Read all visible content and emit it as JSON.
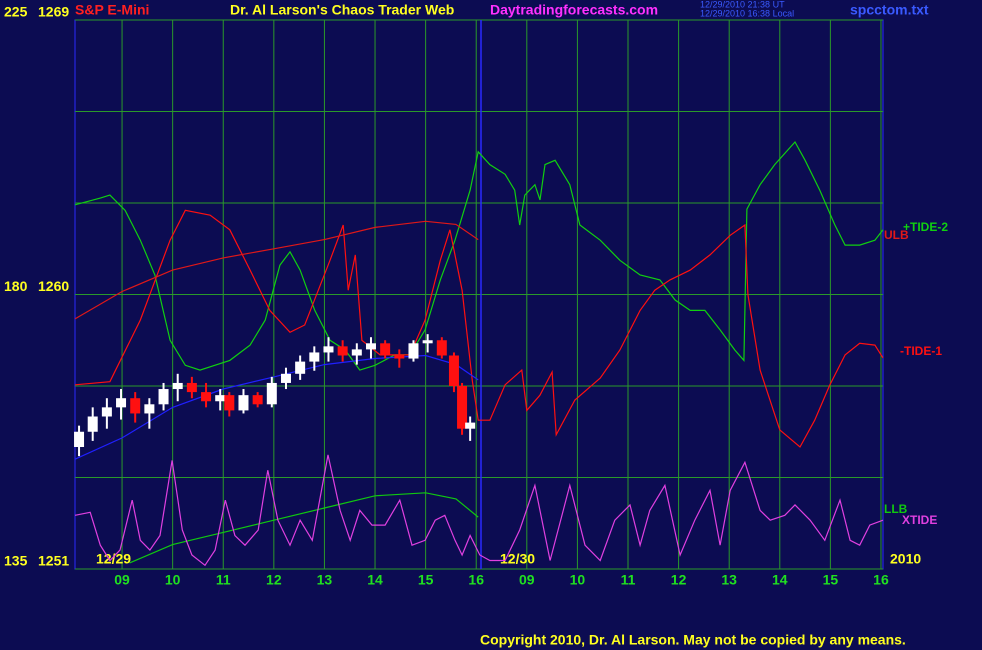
{
  "chart_data": {
    "type": "line",
    "title": "Dr. Al Larson's Chaos Trader Web",
    "instrument": "S&P E-Mini",
    "site": "Daytradingforecasts.com",
    "timestamps": [
      "12/29/2010 21:38 UT",
      "12/29/2010 16:38 Local"
    ],
    "file": "spcctom.txt",
    "copyright": "Copyright 2010, Dr. Al Larson. May not be copied by any means.",
    "date_labels": [
      "12/29",
      "12/30",
      "2010"
    ],
    "xlim": [
      0.07,
      16.04
    ],
    "xticks": [
      {
        "value": 1,
        "label": "09"
      },
      {
        "value": 2,
        "label": "10"
      },
      {
        "value": 3,
        "label": "11"
      },
      {
        "value": 4,
        "label": "12"
      },
      {
        "value": 5,
        "label": "13"
      },
      {
        "value": 6,
        "label": "14"
      },
      {
        "value": 7,
        "label": "15"
      },
      {
        "value": 8,
        "label": "16"
      },
      {
        "value": 9,
        "label": "09"
      },
      {
        "value": 10,
        "label": "10"
      },
      {
        "value": 11,
        "label": "11"
      },
      {
        "value": 12,
        "label": "12"
      },
      {
        "value": 13,
        "label": "13"
      },
      {
        "value": 14,
        "label": "14"
      },
      {
        "value": 15,
        "label": "15"
      },
      {
        "value": 16,
        "label": "16"
      }
    ],
    "ylim": [
      1251,
      1269
    ],
    "yticks": [
      1251,
      1260,
      1269
    ],
    "ygrid": [
      1254,
      1257,
      1263,
      1266
    ],
    "y2lim": [
      135,
      225
    ],
    "y2ticks": [
      135,
      180,
      225
    ],
    "grid": true,
    "series": [
      {
        "name": "+TIDE-2",
        "color": "#10d010",
        "axis": "y2",
        "x": [
          0.07,
          0.57,
          0.76,
          1.06,
          1.36,
          1.65,
          1.95,
          2.25,
          2.54,
          3.13,
          3.53,
          3.83,
          4.12,
          4.32,
          4.52,
          4.81,
          5.11,
          5.41,
          5.7,
          6.0,
          6.39,
          6.69,
          6.99,
          7.29,
          7.58,
          7.88,
          8.04,
          8.27,
          8.57,
          8.76,
          8.86,
          8.96,
          9.16,
          9.26,
          9.36,
          9.56,
          9.85,
          10.05,
          10.45,
          10.84,
          11.24,
          11.63,
          11.93,
          12.23,
          12.52,
          12.82,
          13.11,
          13.29,
          13.35,
          13.61,
          13.9,
          14.3,
          14.5,
          14.79,
          15.09,
          15.29,
          15.58,
          15.88,
          16.04
        ],
        "values": [
          194.7,
          195.8,
          196.3,
          193.8,
          188.9,
          183.2,
          172.5,
          168.4,
          167.6,
          169.2,
          171.7,
          175.8,
          184.8,
          187,
          184,
          177.4,
          172.5,
          170.9,
          167.6,
          168.4,
          170.1,
          170.1,
          174.2,
          182.4,
          188.9,
          197.1,
          203.4,
          201.3,
          199.7,
          197.1,
          191.4,
          196.3,
          198,
          195.5,
          201.3,
          202,
          198,
          191.4,
          188.9,
          185.6,
          183.2,
          182.4,
          179.1,
          177.4,
          177.4,
          174.2,
          170.9,
          169.2,
          194,
          198,
          201.3,
          205,
          202,
          197.1,
          191.4,
          188.1,
          188.1,
          188.9,
          190.6
        ]
      },
      {
        "name": "-TIDE-1",
        "color": "#ff1010",
        "axis": "y2",
        "x": [
          0.07,
          0.76,
          1.36,
          1.95,
          2.25,
          2.74,
          3.13,
          3.53,
          3.92,
          4.32,
          4.61,
          5.11,
          5.37,
          5.47,
          5.61,
          5.74,
          6.1,
          6.69,
          6.99,
          7.29,
          7.48,
          7.72,
          7.92,
          8.04,
          8.27,
          8.57,
          8.9,
          9.0,
          9.26,
          9.5,
          9.58,
          9.95,
          10.45,
          10.84,
          11.24,
          11.53,
          11.83,
          12.23,
          12.62,
          13.02,
          13.31,
          13.37,
          13.61,
          14.0,
          14.4,
          14.69,
          14.99,
          15.29,
          15.58,
          15.88,
          16.04
        ],
        "values": [
          165.2,
          165.7,
          175.8,
          188.9,
          193.8,
          193,
          190.6,
          184,
          177.4,
          173.8,
          175,
          185.6,
          191.4,
          180.7,
          186.5,
          172.5,
          170.1,
          170.1,
          175.8,
          185.6,
          190.6,
          180.7,
          166,
          159.4,
          159.4,
          165.2,
          167.6,
          161,
          163.5,
          167.3,
          157,
          162.7,
          166.3,
          170.9,
          177.4,
          180.7,
          182.4,
          184,
          186.5,
          189.7,
          191.4,
          180,
          167.6,
          157.8,
          155,
          159.4,
          165.2,
          170.1,
          172,
          171.7,
          169.6
        ]
      },
      {
        "name": "ULB",
        "color": "#e01818",
        "axis": "y",
        "x": [
          0.07,
          1,
          2,
          3,
          4,
          5,
          6,
          7,
          7.6,
          8.04
        ],
        "values": [
          1259.2,
          1260.1,
          1260.8,
          1261.2,
          1261.5,
          1261.8,
          1262.2,
          1262.4,
          1262.3,
          1261.8
        ]
      },
      {
        "name": "LLB",
        "color": "#10c810",
        "axis": "y",
        "x": [
          1.15,
          2,
          3,
          4,
          5,
          6,
          7,
          7.6,
          8.04
        ],
        "values": [
          1251.2,
          1251.8,
          1252.2,
          1252.6,
          1253,
          1253.4,
          1253.5,
          1253.3,
          1252.7
        ]
      },
      {
        "name": "XTIDE",
        "color": "#e040e0",
        "axis": "y2",
        "x": [
          0.07,
          0.37,
          0.57,
          0.76,
          0.96,
          1.2,
          1.36,
          1.55,
          1.75,
          1.99,
          2.19,
          2.38,
          2.64,
          2.84,
          3.04,
          3.23,
          3.43,
          3.69,
          3.88,
          4.08,
          4.32,
          4.52,
          4.76,
          5.07,
          5.31,
          5.51,
          5.7,
          5.94,
          6.2,
          6.49,
          6.73,
          6.99,
          7.19,
          7.38,
          7.58,
          7.72,
          7.88,
          8.07,
          8.27,
          8.57,
          8.86,
          9.16,
          9.46,
          9.85,
          10.15,
          10.45,
          10.74,
          11.04,
          11.24,
          11.43,
          11.73,
          12.03,
          12.32,
          12.62,
          12.82,
          13.02,
          13.31,
          13.61,
          13.81,
          14.1,
          14.3,
          14.6,
          14.89,
          15.19,
          15.39,
          15.58,
          15.78,
          16.04
        ],
        "values": [
          143.8,
          144.3,
          138.9,
          136.4,
          138.1,
          146.3,
          139.7,
          138.1,
          140.5,
          152.8,
          141.4,
          137.3,
          135.6,
          138.1,
          146.3,
          140.5,
          138.9,
          141.4,
          151.2,
          143,
          138.9,
          143,
          139.7,
          153.7,
          144.6,
          139.7,
          144.6,
          142.2,
          142.2,
          146.3,
          138.9,
          139.7,
          143,
          143.8,
          139.7,
          137.3,
          140.5,
          137.3,
          136.4,
          136.4,
          141.4,
          148.7,
          136.4,
          148.7,
          138.9,
          136.4,
          143,
          145.5,
          138.9,
          144.6,
          148.7,
          137.3,
          143,
          147.9,
          138.9,
          147.9,
          152.5,
          144.6,
          143,
          143.8,
          145.5,
          143,
          139.7,
          146.3,
          139.7,
          138.9,
          142.2,
          143
        ]
      },
      {
        "color": "#2020ff",
        "axis": "y",
        "x": [
          0.07,
          1,
          2,
          3,
          4,
          5,
          6,
          7,
          7.6,
          8.04
        ],
        "values": [
          1254.6,
          1255.3,
          1256.3,
          1256.9,
          1257.3,
          1257.7,
          1257.9,
          1258,
          1257.7,
          1257.2
        ]
      }
    ],
    "candles": {
      "up_color": "#ffffff",
      "down_color": "#ff1010",
      "x": [
        0.15,
        0.42,
        0.7,
        0.98,
        1.26,
        1.54,
        1.82,
        2.1,
        2.38,
        2.66,
        2.94,
        3.12,
        3.4,
        3.68,
        3.96,
        4.24,
        4.52,
        4.8,
        5.08,
        5.36,
        5.64,
        5.92,
        6.2,
        6.48,
        6.76,
        7.04,
        7.32,
        7.56,
        7.72,
        7.88
      ],
      "open": [
        1255.0,
        1255.5,
        1256.0,
        1256.3,
        1256.6,
        1256.1,
        1256.4,
        1256.9,
        1257.1,
        1256.8,
        1256.5,
        1256.7,
        1256.2,
        1256.7,
        1256.4,
        1257.1,
        1257.4,
        1257.8,
        1258.1,
        1258.3,
        1258.0,
        1258.2,
        1258.4,
        1258.0,
        1257.9,
        1258.4,
        1258.5,
        1258.0,
        1257.0,
        1255.6
      ],
      "high": [
        1255.7,
        1256.3,
        1256.6,
        1256.9,
        1256.8,
        1256.6,
        1257.1,
        1257.4,
        1257.3,
        1257.1,
        1256.9,
        1256.8,
        1256.9,
        1256.8,
        1257.3,
        1257.6,
        1258.0,
        1258.3,
        1258.6,
        1258.5,
        1258.4,
        1258.6,
        1258.5,
        1258.2,
        1258.5,
        1258.7,
        1258.6,
        1258.1,
        1257.1,
        1256.0
      ],
      "low": [
        1254.7,
        1255.2,
        1255.6,
        1255.9,
        1255.8,
        1255.6,
        1256.2,
        1256.5,
        1256.6,
        1256.3,
        1256.2,
        1256.0,
        1256.1,
        1256.3,
        1256.3,
        1256.9,
        1257.2,
        1257.5,
        1257.8,
        1257.8,
        1257.7,
        1257.9,
        1257.9,
        1257.6,
        1257.8,
        1258.1,
        1257.9,
        1256.8,
        1255.4,
        1255.2
      ],
      "close": [
        1255.5,
        1256.0,
        1256.3,
        1256.6,
        1256.1,
        1256.4,
        1256.9,
        1257.1,
        1256.8,
        1256.5,
        1256.7,
        1256.2,
        1256.7,
        1256.4,
        1257.1,
        1257.4,
        1257.8,
        1258.1,
        1258.3,
        1258.0,
        1258.2,
        1258.4,
        1258.0,
        1257.9,
        1258.4,
        1258.5,
        1258.0,
        1257.0,
        1255.6,
        1255.8
      ]
    }
  }
}
